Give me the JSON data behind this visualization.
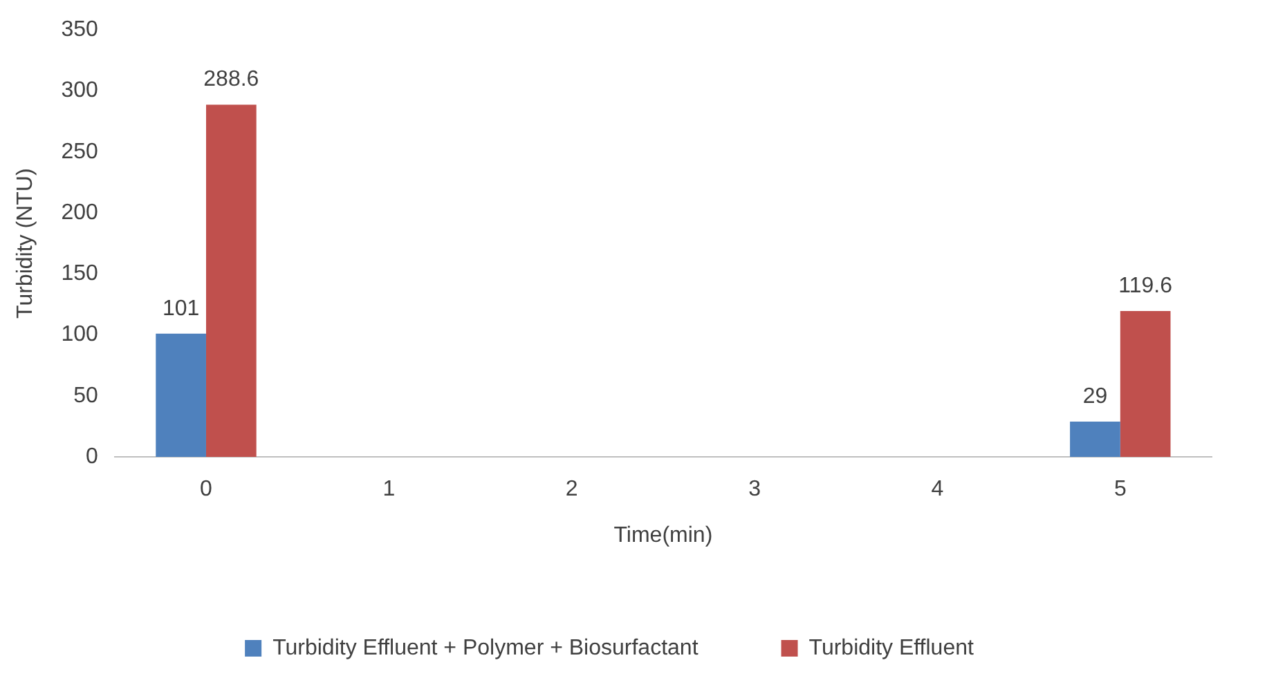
{
  "chart_data": {
    "type": "bar",
    "xlabel": "Time(min)",
    "ylabel": "Turbidity (NTU)",
    "categories": [
      "0",
      "1",
      "2",
      "3",
      "4",
      "5"
    ],
    "series": [
      {
        "name": "Turbidity Effluent + Polymer + Biosurfactant",
        "color": "#4f81bd",
        "values": [
          101,
          null,
          null,
          null,
          null,
          29
        ]
      },
      {
        "name": "Turbidity Effluent",
        "color": "#c0504d",
        "values": [
          288.6,
          null,
          null,
          null,
          null,
          119.6
        ]
      }
    ],
    "ylim": [
      0,
      350
    ],
    "yticks": [
      0,
      50,
      100,
      150,
      200,
      250,
      300,
      350
    ],
    "grid": false,
    "legend": "bottom",
    "data_labels": true
  }
}
